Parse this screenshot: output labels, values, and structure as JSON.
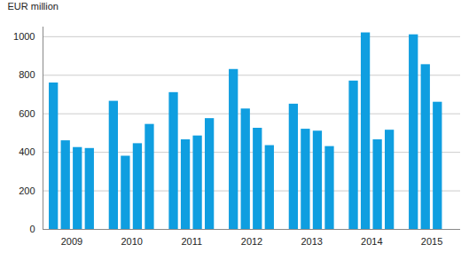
{
  "chart_data": {
    "type": "bar",
    "y_label": "EUR million",
    "categories": [
      "2009",
      "2010",
      "2011",
      "2012",
      "2013",
      "2014",
      "2015"
    ],
    "values": [
      [
        760,
        460,
        425,
        420
      ],
      [
        665,
        380,
        445,
        545
      ],
      [
        710,
        465,
        485,
        575
      ],
      [
        830,
        625,
        525,
        435
      ],
      [
        650,
        520,
        510,
        430
      ],
      [
        770,
        1020,
        465,
        515
      ],
      [
        1010,
        855,
        660,
        null
      ]
    ],
    "color": "#0f9ee0",
    "ylim": [
      0,
      1050
    ],
    "yticks": [
      0,
      200,
      400,
      600,
      800,
      1000
    ],
    "grid": true
  }
}
